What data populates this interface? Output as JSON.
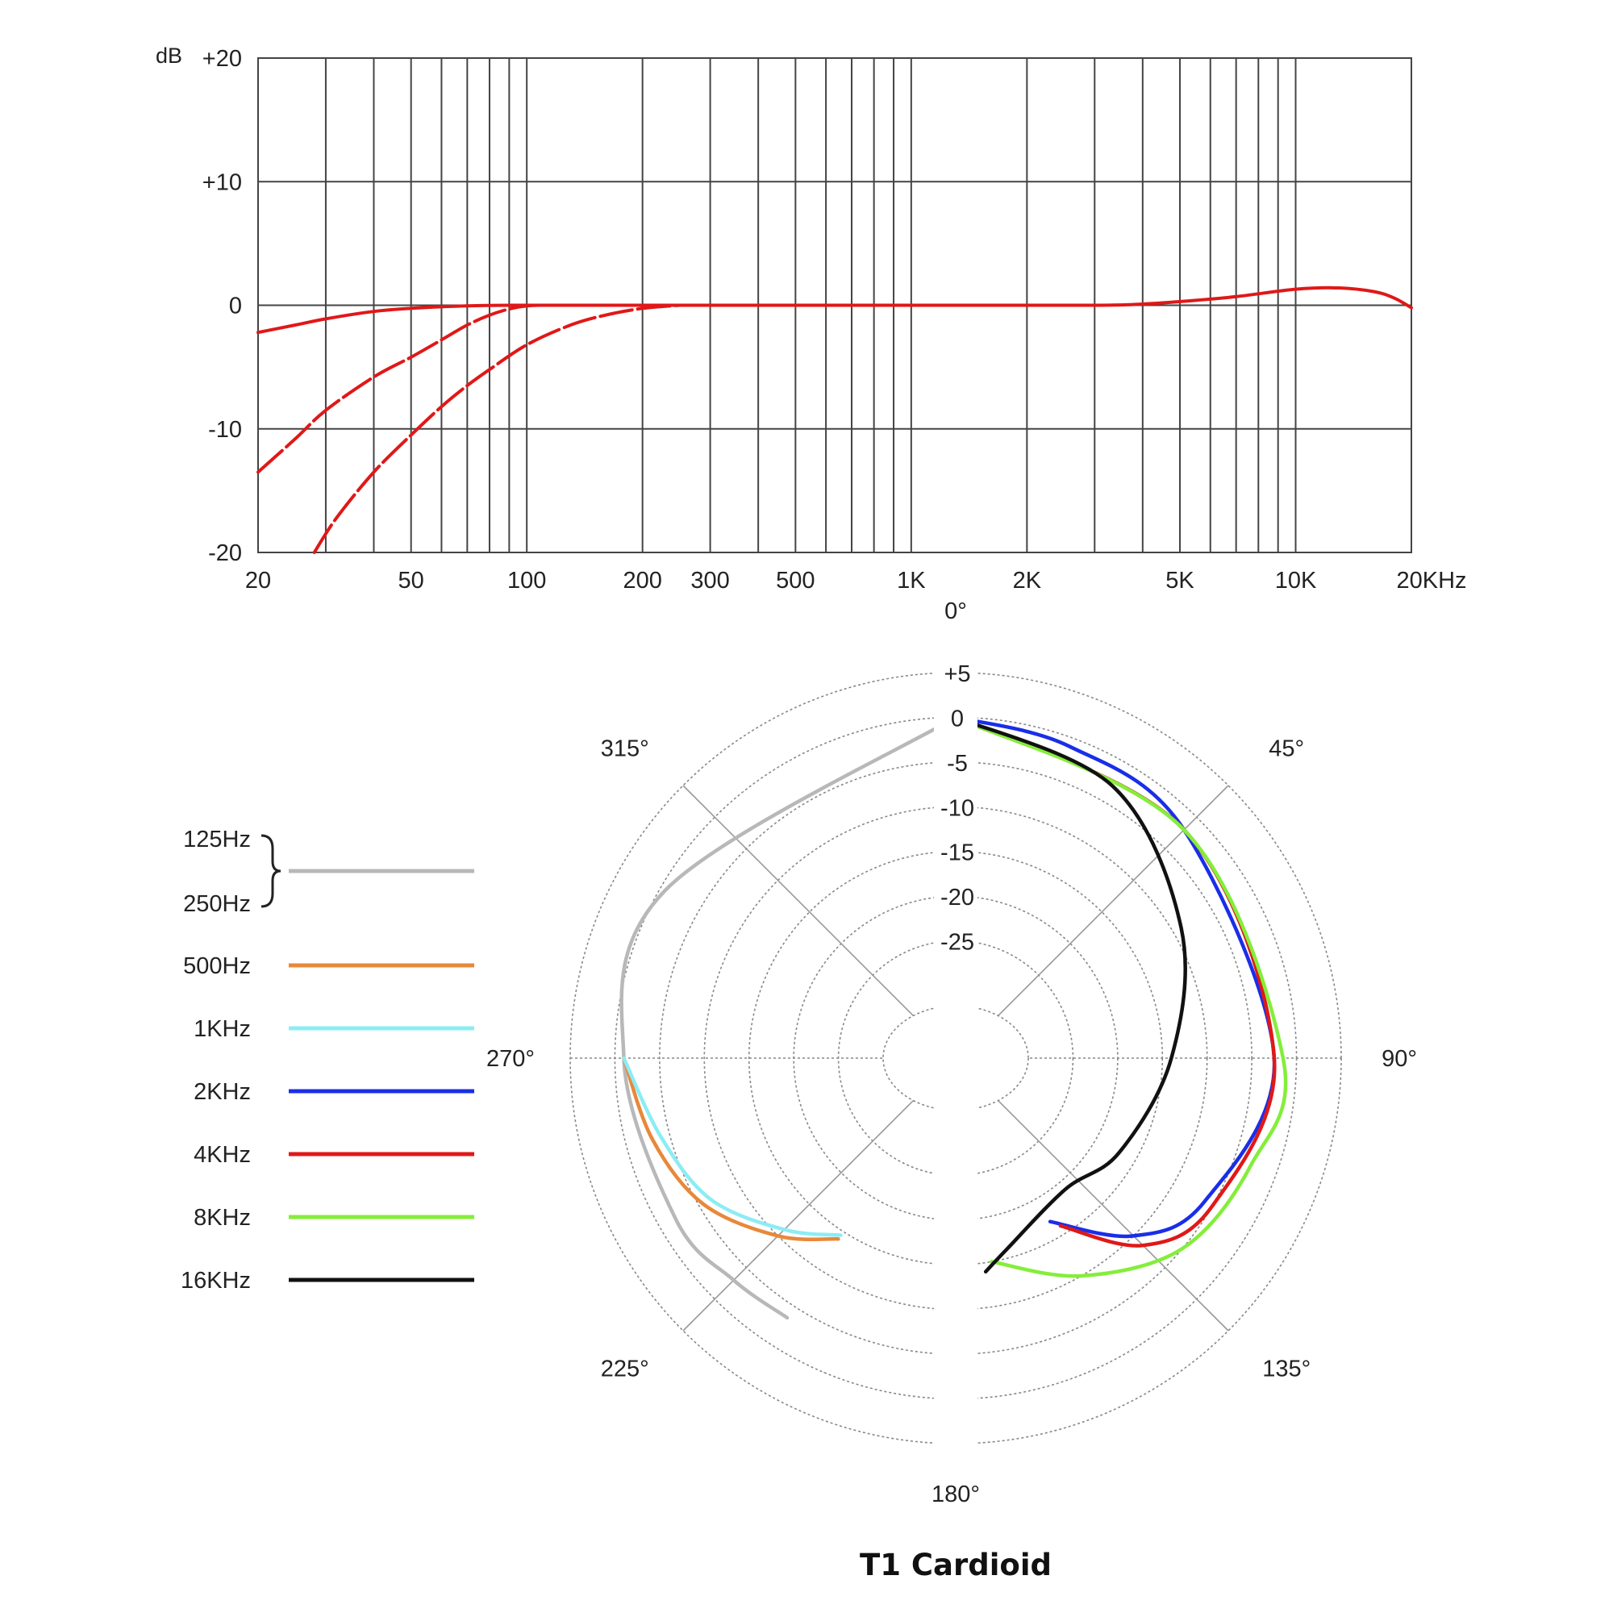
{
  "frequency_response": {
    "y_unit_label": "dB",
    "y_tick_labels": [
      "+20",
      "+10",
      "0",
      "-10",
      "-20"
    ],
    "x_tick_labels": [
      "20",
      "50",
      "100",
      "200",
      "300",
      "500",
      "1K",
      "2K",
      "5K",
      "10K",
      "20KHz"
    ]
  },
  "polar": {
    "angle_labels": [
      "0°",
      "45°",
      "90°",
      "135°",
      "180°",
      "225°",
      "270°",
      "315°"
    ],
    "ring_labels": [
      "+5",
      "0",
      "-5",
      "-10",
      "-15",
      "-20",
      "-25"
    ]
  },
  "legend": {
    "items": [
      {
        "labels": [
          "125Hz",
          "250Hz"
        ],
        "color": "#b8b8b8"
      },
      {
        "labels": [
          "500Hz"
        ],
        "color": "#e8883a"
      },
      {
        "labels": [
          "1KHz"
        ],
        "color": "#8cecf4"
      },
      {
        "labels": [
          "2KHz"
        ],
        "color": "#1a2ee8"
      },
      {
        "labels": [
          "4KHz"
        ],
        "color": "#e01818"
      },
      {
        "labels": [
          "8KHz"
        ],
        "color": "#84ee3a"
      },
      {
        "labels": [
          "16KHz"
        ],
        "color": "#111111"
      }
    ]
  },
  "caption": "T1 Cardioid",
  "chart_data": [
    {
      "type": "line",
      "x_scale": "log",
      "xlim": [
        20,
        20000
      ],
      "ylim": [
        -20,
        20
      ],
      "ylabel": "dB",
      "xlabel": "",
      "grid": true,
      "x_ticks": [
        20,
        50,
        100,
        200,
        300,
        500,
        1000,
        2000,
        5000,
        10000,
        20000
      ],
      "y_ticks": [
        20,
        10,
        0,
        -10,
        -20
      ],
      "series_color": "#e01818",
      "series": [
        {
          "style": "solid",
          "points": [
            [
              20,
              -2.2
            ],
            [
              25,
              -1.6
            ],
            [
              30,
              -1.1
            ],
            [
              40,
              -0.5
            ],
            [
              50,
              -0.25
            ],
            [
              70,
              -0.05
            ],
            [
              100,
              0
            ],
            [
              300,
              0
            ],
            [
              1000,
              0
            ],
            [
              3000,
              0
            ],
            [
              4000,
              0.1
            ],
            [
              5000,
              0.3
            ],
            [
              7000,
              0.7
            ],
            [
              10000,
              1.3
            ],
            [
              13000,
              1.4
            ],
            [
              16000,
              1.1
            ],
            [
              18000,
              0.6
            ],
            [
              20000,
              -0.2
            ]
          ]
        },
        {
          "style": "dashed",
          "points": [
            [
              20,
              -13.5
            ],
            [
              25,
              -10.8
            ],
            [
              30,
              -8.5
            ],
            [
              40,
              -5.8
            ],
            [
              50,
              -4.2
            ],
            [
              60,
              -2.8
            ],
            [
              70,
              -1.6
            ],
            [
              80,
              -0.8
            ],
            [
              90,
              -0.3
            ],
            [
              100,
              -0.05
            ],
            [
              110,
              0
            ]
          ]
        },
        {
          "style": "dashed",
          "points": [
            [
              28,
              -20
            ],
            [
              32,
              -17.2
            ],
            [
              40,
              -13.5
            ],
            [
              50,
              -10.5
            ],
            [
              60,
              -8.2
            ],
            [
              70,
              -6.5
            ],
            [
              80,
              -5.2
            ],
            [
              100,
              -3.2
            ],
            [
              130,
              -1.6
            ],
            [
              160,
              -0.8
            ],
            [
              200,
              -0.25
            ],
            [
              250,
              0
            ]
          ]
        }
      ]
    },
    {
      "type": "polar",
      "r_unit": "dB",
      "r_ticks": [
        5,
        0,
        -5,
        -10,
        -15,
        -20,
        -25
      ],
      "rlim": [
        -30,
        5
      ],
      "theta_ticks": [
        0,
        45,
        90,
        135,
        180,
        225,
        270,
        315
      ],
      "series": [
        {
          "name": "125Hz / 250Hz",
          "color": "#b8b8b8",
          "points": [
            [
              0,
              0
            ],
            [
              300,
              -0.6
            ],
            [
              270,
              -1
            ],
            [
              240,
              -2
            ],
            [
              225,
              -3
            ],
            [
              213,
              -3.5
            ]
          ]
        },
        {
          "name": "500Hz",
          "color": "#e8883a",
          "points": [
            [
              270,
              -1
            ],
            [
              255,
              -3
            ],
            [
              240,
              -5.5
            ],
            [
              225,
              -10
            ],
            [
              213,
              -14
            ]
          ]
        },
        {
          "name": "1KHz",
          "color": "#8cecf4",
          "points": [
            [
              270,
              -1
            ],
            [
              255,
              -4
            ],
            [
              240,
              -6.5
            ],
            [
              225,
              -11
            ],
            [
              213,
              -14.5
            ]
          ]
        },
        {
          "name": "2KHz",
          "color": "#1a2ee8",
          "points": [
            [
              0,
              0
            ],
            [
              20,
              -1
            ],
            [
              45,
              -2
            ],
            [
              90,
              -2.5
            ],
            [
              120,
              -6
            ],
            [
              135,
              -10
            ],
            [
              150,
              -17
            ]
          ]
        },
        {
          "name": "4KHz",
          "color": "#e01818",
          "points": [
            [
              0,
              0
            ],
            [
              45,
              -2
            ],
            [
              90,
              -2.5
            ],
            [
              120,
              -5
            ],
            [
              135,
              -8.5
            ],
            [
              148,
              -16
            ]
          ]
        },
        {
          "name": "8KHz",
          "color": "#84ee3a",
          "points": [
            [
              0,
              0
            ],
            [
              45,
              -2
            ],
            [
              90,
              -1.5
            ],
            [
              110,
              -3
            ],
            [
              130,
              -5
            ],
            [
              150,
              -10
            ],
            [
              170,
              -15
            ]
          ]
        },
        {
          "name": "16KHz",
          "color": "#111111",
          "points": [
            [
              0,
              0
            ],
            [
              30,
              -3
            ],
            [
              60,
              -9
            ],
            [
              90,
              -14
            ],
            [
              120,
              -17
            ],
            [
              140,
              -19
            ],
            [
              165,
              -16
            ],
            [
              172,
              -14
            ]
          ]
        }
      ]
    }
  ]
}
